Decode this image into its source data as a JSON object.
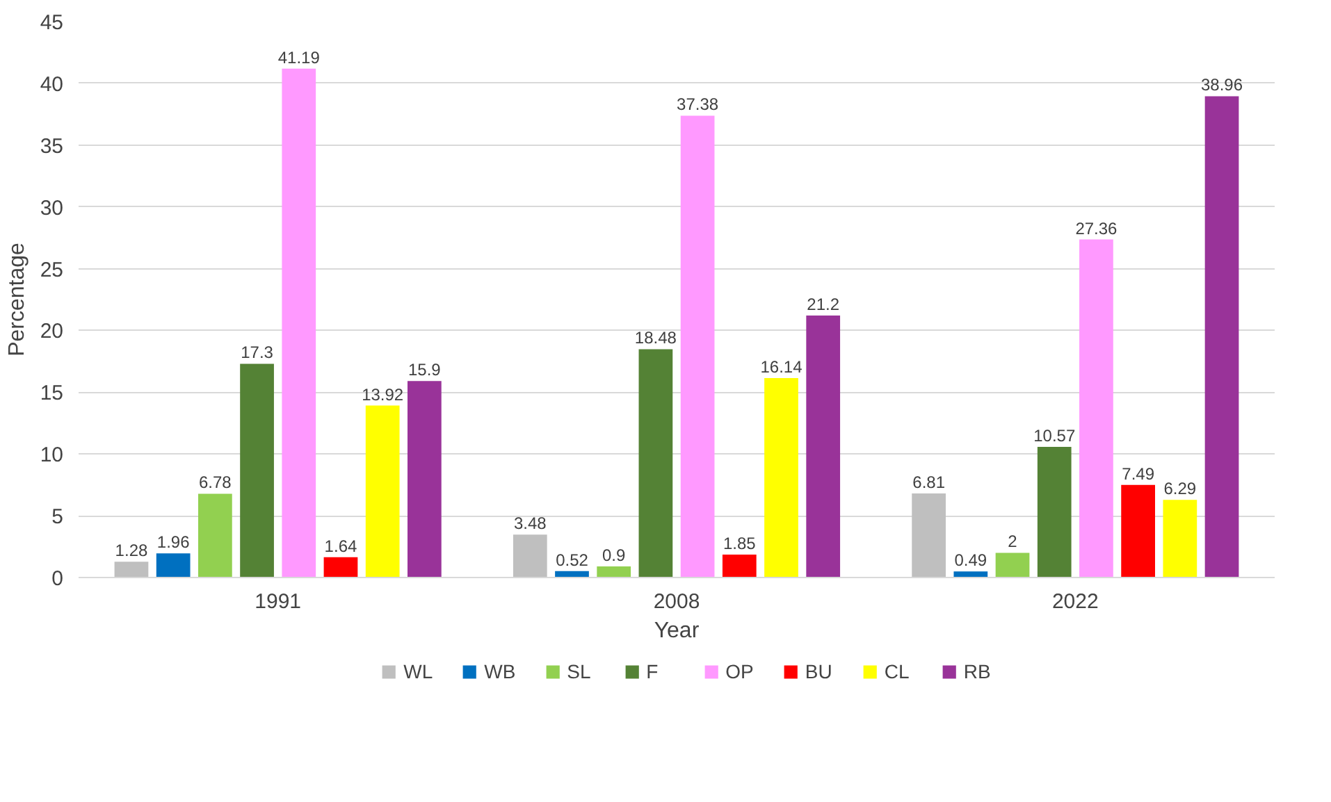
{
  "chart_data": {
    "type": "bar",
    "xlabel": "Year",
    "ylabel": "Percentage",
    "categories": [
      "1991",
      "2008",
      "2022"
    ],
    "series": [
      {
        "name": "WL",
        "color": "#bfbfbf",
        "values": [
          1.28,
          3.48,
          6.81
        ]
      },
      {
        "name": "WB",
        "color": "#0070c0",
        "values": [
          1.96,
          0.52,
          0.49
        ]
      },
      {
        "name": "SL",
        "color": "#92d050",
        "values": [
          6.78,
          0.9,
          2
        ]
      },
      {
        "name": "F",
        "color": "#548235",
        "values": [
          17.3,
          18.48,
          10.57
        ]
      },
      {
        "name": "OP",
        "color": "#ff99ff",
        "values": [
          41.19,
          37.38,
          27.36
        ]
      },
      {
        "name": "BU",
        "color": "#ff0000",
        "values": [
          1.64,
          1.85,
          7.49
        ]
      },
      {
        "name": "CL",
        "color": "#ffff00",
        "values": [
          13.92,
          16.14,
          6.29
        ]
      },
      {
        "name": "RB",
        "color": "#993399",
        "values": [
          15.9,
          21.2,
          38.96
        ]
      }
    ],
    "ylim": [
      0,
      45
    ],
    "yticks": [
      0,
      5,
      10,
      15,
      20,
      25,
      30,
      35,
      40,
      45
    ],
    "grid": "y",
    "legend": "bottom",
    "data_labels": true
  }
}
